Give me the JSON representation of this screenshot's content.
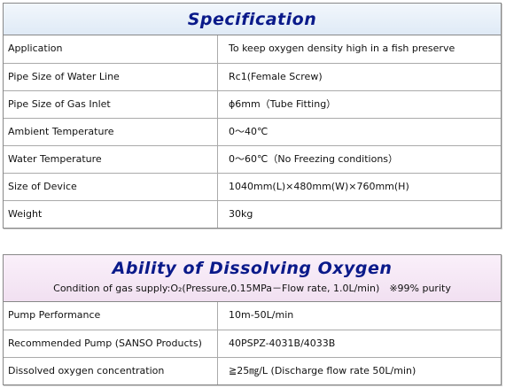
{
  "spec": {
    "title": "Specification",
    "rows": [
      [
        "Application",
        "To keep oxygen density high in a fish preserve"
      ],
      [
        "Pipe Size of Water Line",
        "Rc1(Female Screw)"
      ],
      [
        "Pipe Size of Gas Inlet",
        "ϕ6mm（Tube Fitting）"
      ],
      [
        "Ambient Temperature",
        "0～40℃"
      ],
      [
        "Water Temperature",
        "0～60℃（No Freezing conditions）"
      ],
      [
        "Size of Device",
        "1040mm(L)×480mm(W)×760mm(H)"
      ],
      [
        "Weight",
        "30kg"
      ]
    ]
  },
  "ability": {
    "title": "Ability of Dissolving Oxygen",
    "subtitle": "Condition of gas supply:O₂(Pressure,0.15MPa－Flow rate, 1.0L/min)　※99% purity",
    "rows": [
      [
        "Pump Performance",
        "10m-50L/min"
      ],
      [
        "Recommended Pump (SANSO Products)",
        "40PSPZ-4031B/4033B"
      ],
      [
        "Dissolved oxygen concentration",
        "≧25㎎/L (Discharge flow rate 50L/min)"
      ]
    ]
  }
}
